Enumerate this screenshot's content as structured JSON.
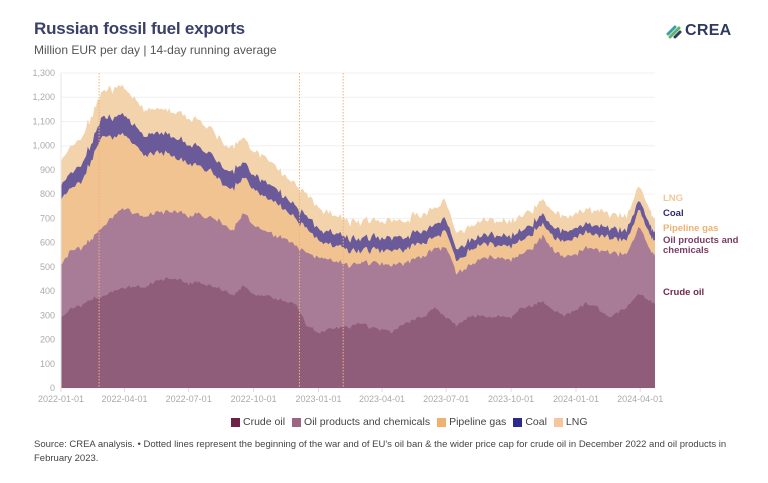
{
  "header": {
    "title": "Russian fossil fuel exports",
    "subtitle": "Million EUR per day | 14-day running average",
    "logo_text": "CREA"
  },
  "chart_data": {
    "type": "area",
    "stacked": true,
    "title": "Russian fossil fuel exports",
    "subtitle": "Million EUR per day | 14-day running average",
    "xlabel": "",
    "ylabel": "",
    "ylim": [
      0,
      1300
    ],
    "xlim": [
      "2022-01-01",
      "2024-04-22"
    ],
    "grid": true,
    "yticks": [
      0,
      100,
      200,
      300,
      400,
      500,
      600,
      700,
      800,
      900,
      1000,
      1100,
      1200,
      1300
    ],
    "ytick_labels": [
      "0",
      "100",
      "200",
      "300",
      "400",
      "500",
      "600",
      "700",
      "800",
      "900",
      "1,000",
      "1,100",
      "1,200",
      "1,300"
    ],
    "xticks": [
      "2022-01-01",
      "2022-04-01",
      "2022-07-01",
      "2022-10-01",
      "2023-01-01",
      "2023-04-01",
      "2023-07-01",
      "2023-10-01",
      "2024-01-01",
      "2024-04-01"
    ],
    "vlines": [
      "2022-02-24",
      "2022-12-05",
      "2023-02-05"
    ],
    "x": [
      "2022-01-01",
      "2022-01-15",
      "2022-02-01",
      "2022-02-15",
      "2022-03-01",
      "2022-03-15",
      "2022-04-01",
      "2022-04-15",
      "2022-05-01",
      "2022-05-15",
      "2022-06-01",
      "2022-06-15",
      "2022-07-01",
      "2022-07-15",
      "2022-08-01",
      "2022-08-15",
      "2022-09-01",
      "2022-09-15",
      "2022-10-01",
      "2022-10-15",
      "2022-11-01",
      "2022-11-15",
      "2022-12-01",
      "2022-12-15",
      "2023-01-01",
      "2023-01-15",
      "2023-02-01",
      "2023-02-15",
      "2023-03-01",
      "2023-03-15",
      "2023-04-01",
      "2023-04-15",
      "2023-05-01",
      "2023-05-15",
      "2023-06-01",
      "2023-06-15",
      "2023-07-01",
      "2023-07-15",
      "2023-08-01",
      "2023-08-15",
      "2023-09-01",
      "2023-09-15",
      "2023-10-01",
      "2023-10-15",
      "2023-11-01",
      "2023-11-15",
      "2023-12-01",
      "2023-12-15",
      "2024-01-01",
      "2024-01-15",
      "2024-02-01",
      "2024-02-15",
      "2024-03-01",
      "2024-03-15",
      "2024-04-01",
      "2024-04-15",
      "2024-04-22"
    ],
    "series": [
      {
        "name": "Crude oil",
        "color": "#8f5d7a",
        "values": [
          290,
          330,
          340,
          370,
          380,
          400,
          410,
          420,
          420,
          440,
          450,
          450,
          430,
          440,
          420,
          410,
          380,
          420,
          390,
          380,
          370,
          360,
          340,
          260,
          230,
          240,
          250,
          250,
          270,
          250,
          240,
          230,
          260,
          280,
          300,
          330,
          290,
          260,
          290,
          300,
          290,
          300,
          290,
          330,
          340,
          360,
          320,
          300,
          320,
          350,
          330,
          290,
          310,
          340,
          390,
          360,
          350
        ]
      },
      {
        "name": "Oil products and chemicals",
        "color": "#a87b96",
        "values": [
          220,
          240,
          240,
          250,
          290,
          310,
          330,
          300,
          290,
          280,
          280,
          280,
          280,
          280,
          280,
          280,
          270,
          300,
          290,
          270,
          260,
          260,
          240,
          300,
          310,
          290,
          270,
          250,
          250,
          270,
          270,
          280,
          250,
          250,
          250,
          240,
          290,
          220,
          210,
          230,
          250,
          240,
          240,
          220,
          240,
          270,
          250,
          240,
          230,
          230,
          240,
          270,
          240,
          220,
          280,
          210,
          200
        ]
      },
      {
        "name": "Pipeline gas",
        "color": "#f0c391",
        "values": [
          270,
          260,
          280,
          330,
          380,
          330,
          300,
          290,
          250,
          250,
          240,
          220,
          220,
          200,
          190,
          170,
          170,
          150,
          150,
          140,
          140,
          120,
          110,
          100,
          70,
          60,
          70,
          60,
          50,
          50,
          60,
          60,
          60,
          60,
          50,
          50,
          70,
          50,
          60,
          60,
          60,
          50,
          60,
          60,
          60,
          50,
          60,
          60,
          70,
          60,
          60,
          60,
          60,
          60,
          70,
          60,
          60
        ]
      },
      {
        "name": "Coal",
        "color": "#6a5a99",
        "values": [
          60,
          60,
          70,
          70,
          80,
          80,
          80,
          80,
          80,
          80,
          80,
          80,
          80,
          80,
          70,
          70,
          70,
          60,
          60,
          60,
          60,
          50,
          50,
          50,
          50,
          50,
          50,
          50,
          50,
          50,
          50,
          50,
          50,
          50,
          50,
          50,
          50,
          50,
          40,
          40,
          40,
          40,
          40,
          40,
          40,
          40,
          40,
          40,
          40,
          40,
          40,
          40,
          40,
          40,
          40,
          40,
          40
        ]
      },
      {
        "name": "LNG",
        "color": "#f3d3ac",
        "values": [
          100,
          110,
          110,
          110,
          110,
          120,
          110,
          110,
          110,
          100,
          100,
          110,
          110,
          110,
          110,
          100,
          100,
          100,
          100,
          100,
          90,
          90,
          90,
          90,
          90,
          80,
          70,
          70,
          70,
          70,
          70,
          70,
          70,
          70,
          70,
          70,
          70,
          70,
          60,
          60,
          60,
          60,
          60,
          60,
          60,
          60,
          60,
          60,
          60,
          60,
          60,
          60,
          60,
          60,
          60,
          60,
          60
        ]
      }
    ],
    "series_labels": [
      {
        "name": "LNG",
        "color": "#f3c79a"
      },
      {
        "name": "Coal",
        "color": "#2e2a6e"
      },
      {
        "name": "Pipeline gas",
        "color": "#f0b16e"
      },
      {
        "name": "Oil products and\nchemicals",
        "color": "#7a3d62"
      },
      {
        "name": "Crude oil",
        "color": "#6e2a4e"
      }
    ]
  },
  "legend": {
    "items": [
      {
        "label": "Crude oil",
        "color": "#6e2346"
      },
      {
        "label": "Oil products and chemicals",
        "color": "#9b6583"
      },
      {
        "label": "Pipeline gas",
        "color": "#f0b16e"
      },
      {
        "label": "Coal",
        "color": "#2e2a8a"
      },
      {
        "label": "LNG",
        "color": "#f5c79a"
      }
    ]
  },
  "footer": {
    "source": "Source: CREA analysis. • Dotted lines represent the beginning of the war and of EU's oil ban & the wider price cap for crude oil in December 2022 and oil products in February 2023."
  }
}
